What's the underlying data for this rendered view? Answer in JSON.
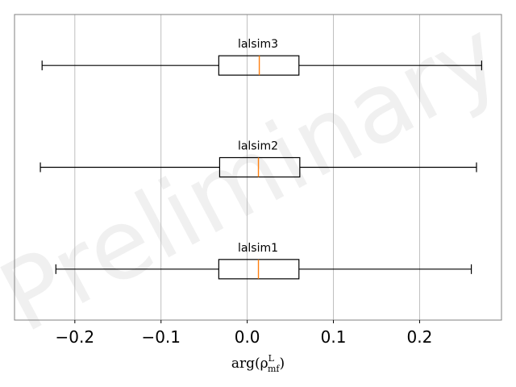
{
  "watermark": "Preliminary",
  "chart_data": {
    "type": "boxplot",
    "orientation": "horizontal",
    "xlabel": "arg(ρ",
    "xlabel_sup": "L",
    "xlabel_sub": "mf",
    "xlabel_close": ")",
    "xlim": [
      -0.27,
      0.295
    ],
    "xticks": [
      -0.2,
      -0.1,
      0.0,
      0.1,
      0.2
    ],
    "xtick_labels": [
      "−0.2",
      "−0.1",
      "0.0",
      "0.1",
      "0.2"
    ],
    "grid": "x",
    "colors": {
      "box": "#000000",
      "median": "#ff7f0e",
      "grid": "#b0b0b0",
      "frame": "#808080"
    },
    "series": [
      {
        "name": "lalsim1",
        "whisker_low": -0.222,
        "q1": -0.033,
        "median": 0.013,
        "q3": 0.06,
        "whisker_high": 0.26
      },
      {
        "name": "lalsim2",
        "whisker_low": -0.24,
        "q1": -0.032,
        "median": 0.013,
        "q3": 0.061,
        "whisker_high": 0.266
      },
      {
        "name": "lalsim3",
        "whisker_low": -0.238,
        "q1": -0.033,
        "median": 0.014,
        "q3": 0.06,
        "whisker_high": 0.272
      }
    ]
  }
}
